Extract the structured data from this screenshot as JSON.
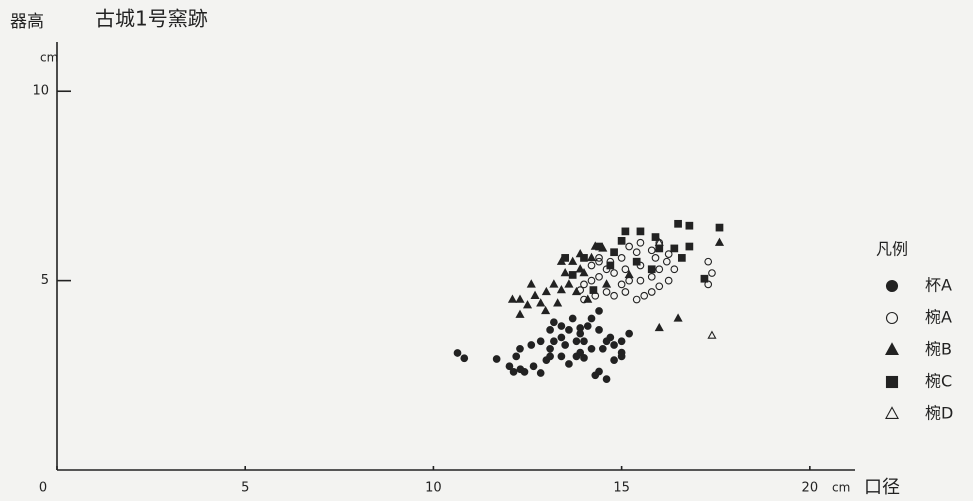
{
  "chart_data": {
    "type": "scatter",
    "title": "古城1号窯跡",
    "y_label": "器高",
    "y_unit": "cm",
    "x_label": "口径",
    "x_unit": "cm",
    "legend_title": "凡例",
    "legend": "right",
    "xlim": [
      0,
      21.2
    ],
    "ylim": [
      0,
      11.3
    ],
    "xticks": [
      0,
      5,
      10,
      15,
      20
    ],
    "yticks": [
      5,
      10
    ],
    "series": [
      {
        "name": "杯A",
        "color": "#222222",
        "marker": "circle",
        "filled": true,
        "x": [
          10.64,
          10.82,
          11.68,
          12.02,
          12.13,
          12.31,
          12.42,
          12.85,
          12.66,
          13.0,
          13.1,
          13.4,
          13.6,
          13.8,
          13.9,
          14.0,
          14.2,
          14.4,
          14.3,
          14.6,
          14.8,
          15.0,
          15.2,
          15.0,
          14.6,
          14.4,
          14.2,
          14.4,
          14.1,
          13.9,
          13.6,
          13.4,
          13.2,
          13.1,
          12.85,
          12.6,
          12.3,
          12.2,
          13.4,
          13.5,
          13.1,
          13.8,
          14.0,
          14.7,
          14.5,
          14.8,
          15.0,
          13.7,
          13.9,
          13.2
        ],
        "values": [
          3.09,
          2.95,
          2.93,
          2.74,
          2.59,
          2.66,
          2.59,
          2.56,
          2.74,
          2.9,
          3.0,
          3.0,
          2.8,
          3.0,
          3.1,
          2.96,
          3.2,
          2.6,
          2.5,
          2.4,
          2.9,
          3.1,
          3.6,
          3.4,
          3.4,
          3.7,
          4.0,
          4.2,
          3.8,
          3.6,
          3.7,
          3.8,
          3.4,
          3.7,
          3.4,
          3.3,
          3.2,
          3.0,
          3.5,
          3.3,
          3.2,
          3.4,
          3.4,
          3.5,
          3.2,
          3.3,
          3.0,
          4.0,
          3.75,
          3.9
        ]
      },
      {
        "name": "椀A",
        "color": "#222222",
        "marker": "circle",
        "filled": false,
        "x": [
          14.2,
          14.4,
          14.7,
          15.0,
          15.2,
          15.5,
          15.8,
          15.9,
          16.2,
          16.0,
          15.8,
          15.5,
          15.2,
          15.0,
          14.8,
          14.6,
          14.4,
          14.2,
          14.0,
          13.9,
          14.0,
          14.3,
          15.1,
          15.4,
          15.6,
          15.8,
          16.0,
          16.25,
          16.4,
          16.25,
          16.0,
          15.4,
          15.1,
          14.8,
          17.3,
          17.4,
          17.3,
          15.5,
          14.6,
          14.4
        ],
        "values": [
          5.4,
          5.5,
          5.5,
          5.6,
          5.9,
          6.0,
          5.8,
          5.6,
          5.5,
          5.3,
          5.1,
          5.0,
          5.0,
          4.9,
          4.6,
          4.7,
          5.1,
          5.0,
          4.9,
          4.75,
          4.5,
          4.6,
          4.7,
          4.5,
          4.6,
          4.7,
          4.85,
          5.0,
          5.3,
          5.7,
          6.0,
          5.75,
          5.3,
          5.2,
          5.5,
          5.2,
          4.9,
          5.4,
          5.3,
          5.6
        ]
      },
      {
        "name": "椀B",
        "color": "#222222",
        "marker": "triangle",
        "filled": true,
        "x": [
          12.1,
          12.3,
          12.5,
          12.7,
          12.85,
          13.0,
          13.2,
          13.4,
          13.5,
          13.7,
          13.9,
          14.0,
          14.2,
          13.9,
          14.3,
          13.6,
          13.8,
          13.3,
          12.98,
          12.6,
          12.3,
          14.5,
          14.6,
          16.0,
          16.5,
          17.6,
          15.2,
          13.4,
          14.1
        ],
        "values": [
          4.5,
          4.1,
          4.35,
          4.6,
          4.4,
          4.7,
          4.9,
          4.75,
          5.2,
          5.5,
          5.3,
          5.2,
          5.6,
          5.7,
          5.9,
          4.9,
          4.7,
          4.4,
          4.2,
          4.9,
          4.5,
          5.85,
          4.9,
          3.75,
          4.0,
          6.0,
          5.15,
          5.5,
          4.5
        ]
      },
      {
        "name": "椀C",
        "color": "#222222",
        "marker": "square",
        "filled": true,
        "x": [
          13.5,
          14.0,
          14.4,
          14.8,
          15.0,
          15.1,
          15.5,
          15.9,
          16.0,
          16.4,
          16.8,
          16.5,
          16.8,
          17.6,
          16.6,
          17.2,
          14.7,
          15.4,
          14.25,
          13.7,
          15.8
        ],
        "values": [
          5.6,
          5.6,
          5.9,
          5.75,
          6.05,
          6.3,
          6.3,
          6.15,
          5.85,
          5.85,
          5.9,
          6.5,
          6.45,
          6.4,
          5.6,
          5.05,
          5.4,
          5.5,
          4.75,
          5.15,
          5.3
        ]
      },
      {
        "name": "椀D",
        "color": "#222222",
        "marker": "triangle",
        "filled": false,
        "x": [
          16.0,
          17.4
        ],
        "values": [
          6.0,
          3.55
        ]
      }
    ]
  }
}
